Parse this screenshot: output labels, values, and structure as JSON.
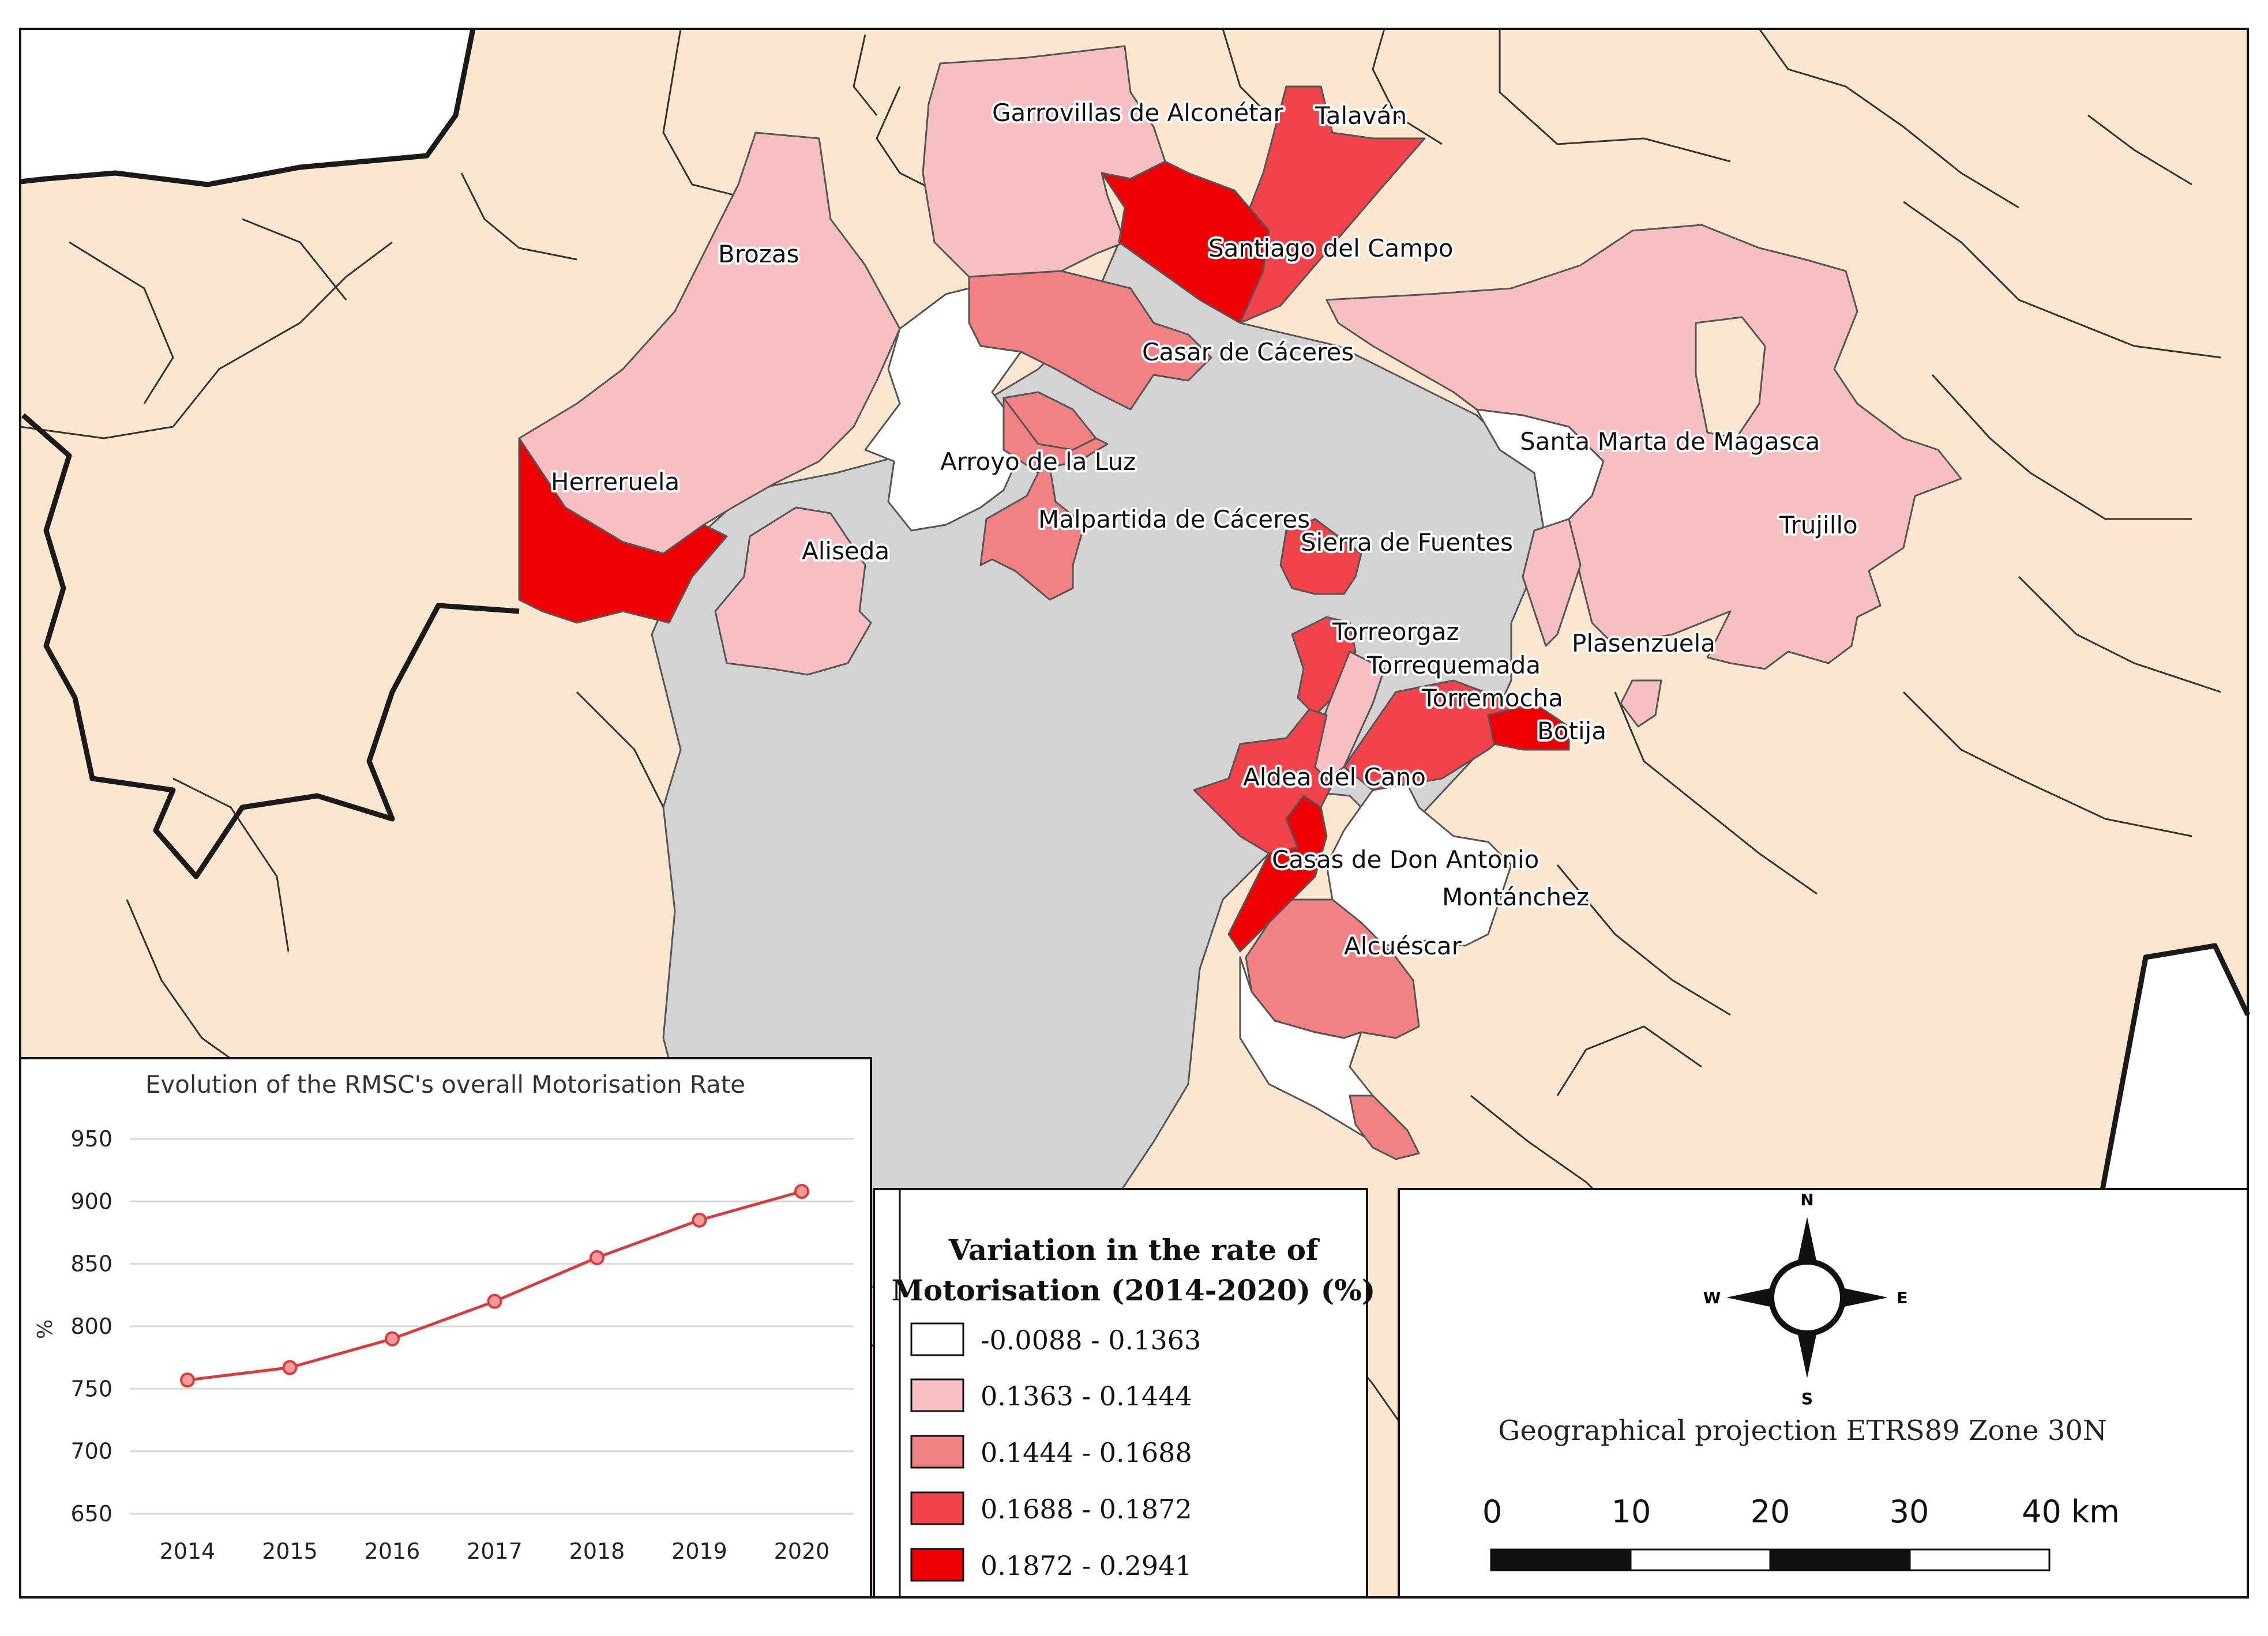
{
  "colors": {
    "background_land": "#fbe6d0",
    "sea_white": "#ffffff",
    "rmsc_grey": "#d3d3d3",
    "border": "#1a1a1a",
    "class_1": "#ffffff",
    "class_2": "#f8bfc2",
    "class_3": "#f28183",
    "class_4": "#f2424a",
    "class_5": "#ee0005",
    "chart_line": "#d93a3a"
  },
  "map": {
    "labels": [
      {
        "key": "garrovillas",
        "text": "Garrovillas de Alconétar"
      },
      {
        "key": "talavan",
        "text": "Talaván"
      },
      {
        "key": "brozas",
        "text": "Brozas"
      },
      {
        "key": "santiago",
        "text": "Santiago del Campo"
      },
      {
        "key": "casar",
        "text": "Casar de Cáceres"
      },
      {
        "key": "santamarta",
        "text": "Santa Marta de Magasca"
      },
      {
        "key": "arroyo",
        "text": "Arroyo de la Luz"
      },
      {
        "key": "herreruela",
        "text": "Herreruela"
      },
      {
        "key": "trujillo",
        "text": "Trujillo"
      },
      {
        "key": "malpartida",
        "text": "Malpartida de Cáceres"
      },
      {
        "key": "sierra",
        "text": "Sierra de Fuentes"
      },
      {
        "key": "aliseda",
        "text": "Aliseda"
      },
      {
        "key": "torreorgaz",
        "text": "Torreorgaz"
      },
      {
        "key": "plasenzuela",
        "text": "Plasenzuela"
      },
      {
        "key": "torrequemada",
        "text": "Torrequemada"
      },
      {
        "key": "torremocha",
        "text": "Torremocha"
      },
      {
        "key": "botija",
        "text": "Botija"
      },
      {
        "key": "aldea",
        "text": "Aldea del Cano"
      },
      {
        "key": "casasdon",
        "text": "Casas de Don Antonio"
      },
      {
        "key": "montanchez",
        "text": "Montánchez"
      },
      {
        "key": "alcuescar",
        "text": "Alcuéscar"
      }
    ]
  },
  "legend": {
    "title_line1": "Variation in the rate of",
    "title_line2": "Motorisation (2014-2020) (%)",
    "classes": [
      {
        "label": "-0.0088 - 0.1363",
        "color": "#ffffff"
      },
      {
        "label": "0.1363 - 0.1444",
        "color": "#f8bfc2"
      },
      {
        "label": "0.1444 - 0.1688",
        "color": "#f28183"
      },
      {
        "label": "0.1688 - 0.1872",
        "color": "#f2424a"
      },
      {
        "label": "0.1872 - 0.2941",
        "color": "#ee0005"
      }
    ]
  },
  "compass": {
    "n": "N",
    "s": "S",
    "e": "E",
    "w": "W"
  },
  "projection": "Geographical projection ETRS89 Zone 30N",
  "scalebar": {
    "ticks": [
      "0",
      "10",
      "20",
      "30",
      "40 km"
    ]
  },
  "chart_data": {
    "type": "line",
    "title": "Evolution of the RMSC's overall Motorisation Rate",
    "ylabel": "%",
    "xlabel": "",
    "categories": [
      "2014",
      "2015",
      "2016",
      "2017",
      "2018",
      "2019",
      "2020"
    ],
    "values": [
      757,
      767,
      790,
      820,
      855,
      885,
      908
    ],
    "ylim": [
      650,
      950
    ],
    "yticks": [
      "650",
      "700",
      "750",
      "800",
      "850",
      "900",
      "950"
    ],
    "grid": true
  }
}
